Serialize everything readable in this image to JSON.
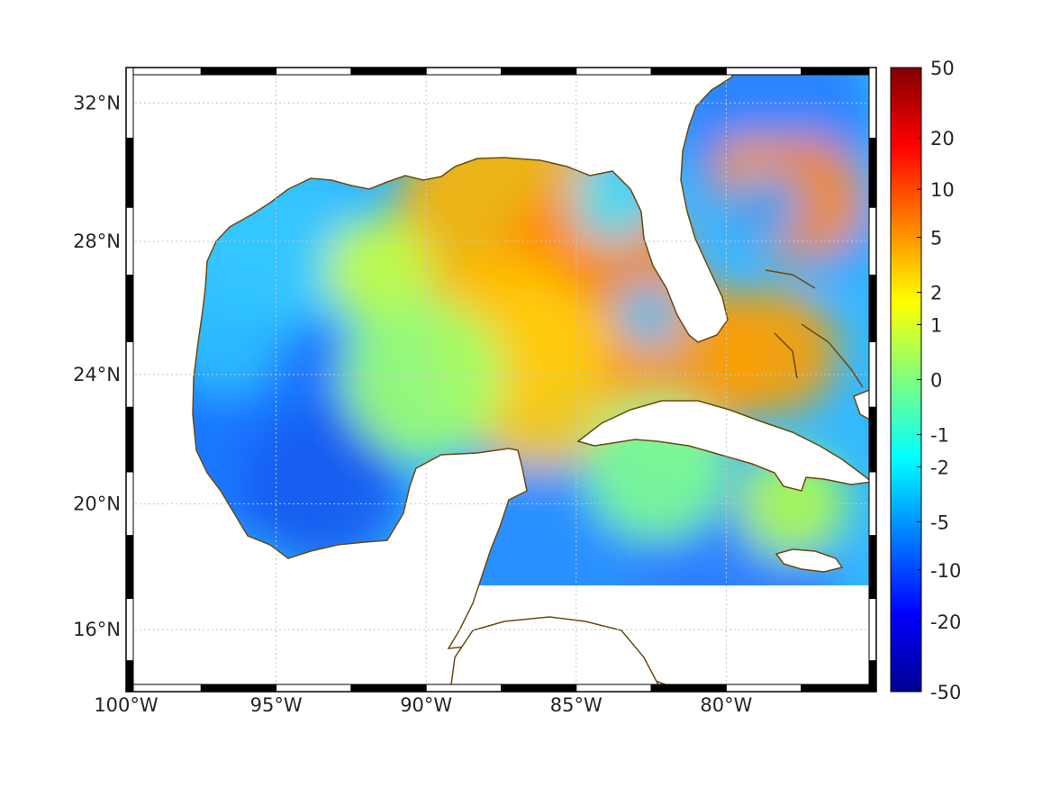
{
  "map": {
    "lon_range": [
      -100,
      -75
    ],
    "lat_range": [
      14,
      33
    ],
    "projection": "mercator",
    "frame": "black-and-white checkered border",
    "grid": true,
    "grid_style": "dotted",
    "x_ticks": [
      "100°W",
      "95°W",
      "90°W",
      "85°W",
      "80°W"
    ],
    "x_tick_values": [
      -100,
      -95,
      -90,
      -85,
      -80
    ],
    "y_ticks": [
      "16°N",
      "20°N",
      "24°N",
      "28°N",
      "32°N"
    ],
    "y_tick_values": [
      16,
      20,
      24,
      28,
      32
    ],
    "field": "gridded ocean field over Gulf of Mexico, Caribbean and western Atlantic",
    "land_color": "#ffffff",
    "coastline_color": "#6b4a10"
  },
  "colorbar": {
    "scale": "symmetric nonlinear",
    "colormap": "jet",
    "ticks": [
      "50",
      "20",
      "10",
      "5",
      "2",
      "1",
      "0",
      "-1",
      "-2",
      "-5",
      "-10",
      "-20",
      "-50"
    ],
    "tick_values": [
      50,
      20,
      10,
      5,
      2,
      1,
      0,
      -1,
      -2,
      -5,
      -10,
      -20,
      -50
    ],
    "placement": "right"
  }
}
